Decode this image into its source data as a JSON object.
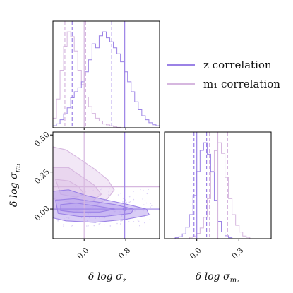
{
  "colors": {
    "z": "#9b82e6",
    "m1": "#d6b7df",
    "z_fill": "#b9a4ef",
    "m1_fill": "#e2c9ea"
  },
  "chart_data": {
    "type": "corner",
    "parameters": [
      "δ log σ_z",
      "δ log σ_m1"
    ],
    "axis_labels": {
      "x1": "δ log σ",
      "x1_sub": "z",
      "x2": "δ log σ",
      "x2_sub": "m₁",
      "y2": "δ log σ",
      "y2_sub": "m₁"
    },
    "ticks": {
      "sigma_z": {
        "values": [
          0.0,
          0.8
        ],
        "labels": [
          "0.0",
          "0.8"
        ],
        "range": [
          -0.6,
          1.45
        ]
      },
      "sigma_m1": {
        "values": [
          0.0,
          0.25,
          0.5
        ],
        "labels": [
          "0.00",
          "0.25",
          "0.50"
        ],
        "range": [
          -0.2,
          0.52
        ]
      },
      "sigma_m1_diag": {
        "values": [
          0.0,
          0.3
        ],
        "labels": [
          "0.0",
          "0.3"
        ],
        "range": [
          -0.23,
          0.53
        ]
      }
    },
    "legend": {
      "placement": "right",
      "entries": [
        "z correlation",
        "m₁ correlation"
      ]
    },
    "series": [
      {
        "name": "z correlation",
        "truth": {
          "sigma_z": 0.78,
          "sigma_m1": 0.0
        },
        "quantiles_sigma_z": [
          -0.23,
          0.53
        ],
        "quantiles_sigma_m1": [
          -0.02,
          0.07
        ],
        "hist_sigma_z": [
          1,
          2,
          4,
          7,
          10,
          15,
          18,
          20,
          23,
          28,
          34,
          42,
          40,
          46,
          48,
          45,
          43,
          40,
          37,
          33,
          28,
          23,
          18,
          13,
          9,
          6,
          4,
          2.5,
          1.5,
          1
        ],
        "hist_sigma_m1": [
          0,
          0,
          0,
          1,
          2,
          5,
          12,
          25,
          45,
          70,
          92,
          100,
          88,
          70,
          40,
          18,
          7,
          3,
          1,
          0,
          0,
          0,
          0,
          0,
          0,
          0,
          0,
          0,
          0,
          0
        ]
      },
      {
        "name": "m₁ correlation",
        "truth": {
          "sigma_z": 0.0,
          "sigma_m1": 0.15
        },
        "quantiles_sigma_z": [
          -0.37,
          0.03
        ],
        "quantiles_sigma_m1": [
          0.09,
          0.22
        ],
        "hist_sigma_z": [
          10,
          30,
          60,
          85,
          100,
          95,
          80,
          60,
          45,
          32,
          22,
          15,
          10,
          7,
          4,
          3,
          2,
          1,
          0.5,
          0,
          0,
          0,
          0,
          0,
          0,
          0,
          0,
          0,
          0,
          0
        ],
        "hist_sigma_m1": [
          0,
          0,
          0,
          0,
          0,
          0,
          0,
          1,
          2,
          4,
          8,
          16,
          30,
          50,
          66,
          72,
          64,
          46,
          30,
          18,
          10,
          5,
          2,
          1,
          0,
          0,
          0,
          0,
          0,
          0
        ]
      }
    ]
  }
}
